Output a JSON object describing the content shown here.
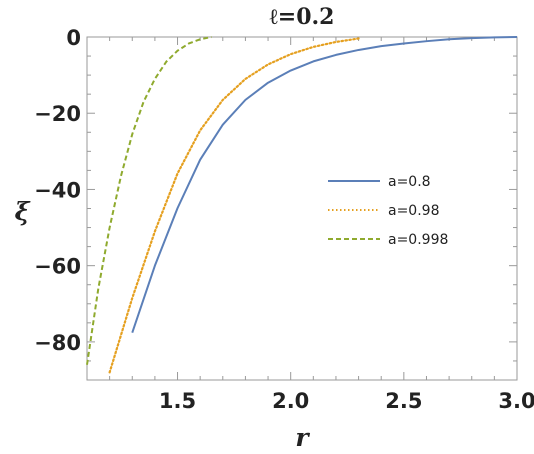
{
  "chart_data": {
    "type": "line",
    "title": "ℓ=0.2",
    "xlabel": "r",
    "ylabel": "ξ",
    "xlim": [
      1.1,
      3.0
    ],
    "ylim": [
      -90,
      0
    ],
    "xticks": [
      "1.5",
      "2.0",
      "2.5",
      "3.0"
    ],
    "yticks": [
      "0",
      "−20",
      "−40",
      "−60",
      "−80"
    ],
    "grid": false,
    "legend_position": "right",
    "series": [
      {
        "name": "a=0.8",
        "style": "solid",
        "color": "#5b7fb8",
        "points": [
          [
            1.3,
            -77.6
          ],
          [
            1.4,
            -60.0
          ],
          [
            1.5,
            -44.9
          ],
          [
            1.6,
            -32.2
          ],
          [
            1.7,
            -23.0
          ],
          [
            1.8,
            -16.5
          ],
          [
            1.9,
            -12.0
          ],
          [
            2.0,
            -8.8
          ],
          [
            2.1,
            -6.4
          ],
          [
            2.2,
            -4.7
          ],
          [
            2.3,
            -3.4
          ],
          [
            2.4,
            -2.4
          ],
          [
            2.5,
            -1.7
          ],
          [
            2.6,
            -1.1
          ],
          [
            2.7,
            -0.6
          ],
          [
            2.8,
            -0.3
          ],
          [
            2.9,
            -0.1
          ],
          [
            3.0,
            0.0
          ]
        ]
      },
      {
        "name": "a=0.98",
        "style": "dotted",
        "color": "#e5a020",
        "points": [
          [
            1.2,
            -88.0
          ],
          [
            1.3,
            -68.5
          ],
          [
            1.4,
            -51.0
          ],
          [
            1.5,
            -35.8
          ],
          [
            1.6,
            -24.5
          ],
          [
            1.7,
            -16.5
          ],
          [
            1.8,
            -11.0
          ],
          [
            1.9,
            -7.2
          ],
          [
            2.0,
            -4.5
          ],
          [
            2.1,
            -2.6
          ],
          [
            2.2,
            -1.3
          ],
          [
            2.3,
            -0.4
          ]
        ]
      },
      {
        "name": "a=0.998",
        "style": "dashed",
        "color": "#8faa2e",
        "points": [
          [
            1.1,
            -86.0
          ],
          [
            1.15,
            -66.0
          ],
          [
            1.2,
            -50.0
          ],
          [
            1.25,
            -36.5
          ],
          [
            1.3,
            -25.5
          ],
          [
            1.35,
            -17.0
          ],
          [
            1.4,
            -11.0
          ],
          [
            1.45,
            -6.5
          ],
          [
            1.5,
            -3.6
          ],
          [
            1.55,
            -1.7
          ],
          [
            1.6,
            -0.6
          ],
          [
            1.65,
            0.0
          ]
        ]
      }
    ]
  }
}
